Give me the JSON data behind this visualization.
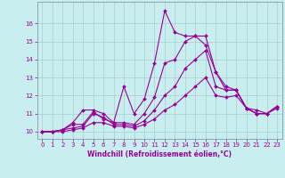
{
  "title": "",
  "xlabel": "Windchill (Refroidissement éolien,°C)",
  "ylabel": "",
  "background_color": "#c8eef0",
  "grid_color": "#aacccc",
  "line_color": "#990099",
  "xlim": [
    -0.5,
    23.5
  ],
  "ylim": [
    9.6,
    17.2
  ],
  "xticks": [
    0,
    1,
    2,
    3,
    4,
    5,
    6,
    7,
    8,
    9,
    10,
    11,
    12,
    13,
    14,
    15,
    16,
    17,
    18,
    19,
    20,
    21,
    22,
    23
  ],
  "yticks": [
    10,
    11,
    12,
    13,
    14,
    15,
    16
  ],
  "series": [
    [
      10.0,
      10.0,
      10.1,
      10.5,
      11.2,
      11.2,
      11.0,
      10.5,
      12.5,
      11.0,
      11.8,
      13.8,
      16.7,
      15.5,
      15.3,
      15.3,
      14.8,
      13.3,
      12.3,
      12.3,
      11.3,
      11.0,
      11.0,
      11.4
    ],
    [
      10.0,
      10.0,
      10.1,
      10.4,
      10.4,
      11.1,
      10.7,
      10.5,
      10.5,
      10.4,
      11.0,
      11.9,
      13.8,
      14.0,
      15.0,
      15.3,
      15.3,
      13.3,
      12.5,
      12.3,
      11.3,
      11.2,
      11.0,
      11.4
    ],
    [
      10.0,
      10.0,
      10.1,
      10.2,
      10.3,
      11.0,
      10.8,
      10.4,
      10.4,
      10.3,
      10.6,
      11.2,
      12.0,
      12.5,
      13.5,
      14.0,
      14.5,
      12.5,
      12.3,
      12.3,
      11.3,
      11.0,
      11.0,
      11.4
    ],
    [
      10.0,
      10.0,
      10.0,
      10.1,
      10.2,
      10.5,
      10.5,
      10.3,
      10.3,
      10.2,
      10.4,
      10.7,
      11.2,
      11.5,
      12.0,
      12.5,
      13.0,
      12.0,
      11.9,
      12.0,
      11.3,
      11.0,
      11.0,
      11.3
    ]
  ],
  "marker": "D",
  "markersize": 2.0,
  "linewidth": 0.8,
  "tick_fontsize": 5.0,
  "xlabel_fontsize": 5.5
}
